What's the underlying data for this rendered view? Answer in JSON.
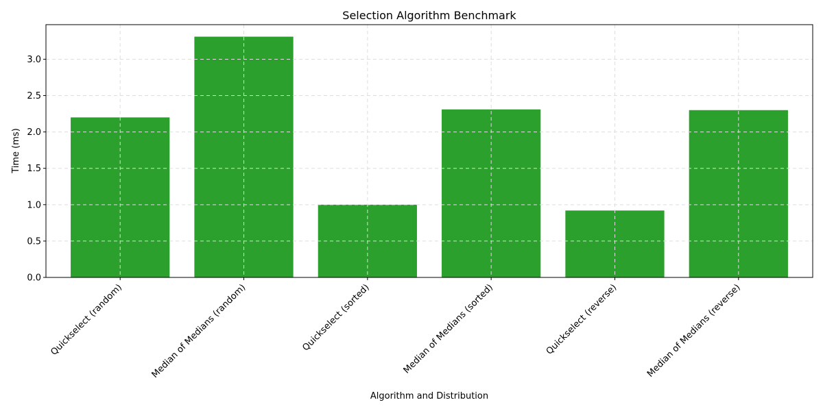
{
  "chart_data": {
    "type": "bar",
    "title": "Selection Algorithm Benchmark",
    "xlabel": "Algorithm and Distribution",
    "ylabel": "Time (ms)",
    "categories": [
      "Quickselect (random)",
      "Median of Medians (random)",
      "Quickselect (sorted)",
      "Median of Medians (sorted)",
      "Quickselect (reverse)",
      "Median of Medians (reverse)"
    ],
    "values": [
      2.2,
      3.31,
      1.0,
      2.31,
      0.92,
      2.3
    ],
    "ylim": [
      0,
      3.475
    ],
    "yticks": [
      "0.0",
      "0.5",
      "1.0",
      "1.5",
      "2.0",
      "2.5",
      "3.0"
    ],
    "grid": true,
    "bar_color": "#2ca02c",
    "grid_color": "#dddddd"
  }
}
